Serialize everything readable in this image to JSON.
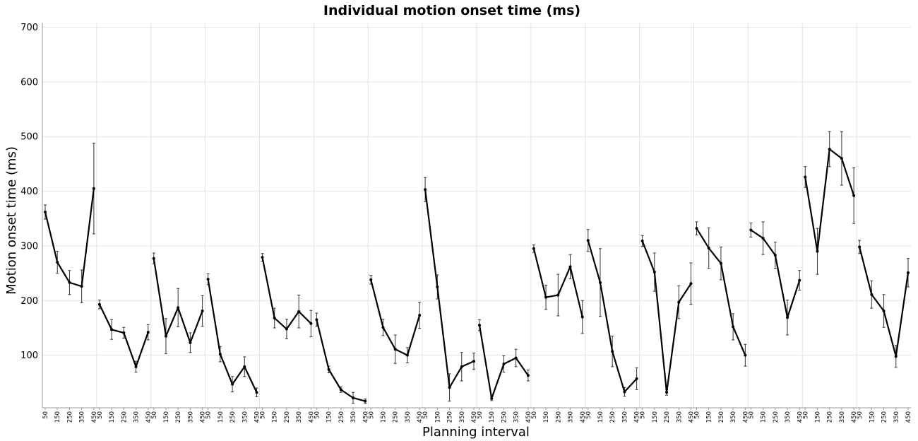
{
  "chart_data": {
    "type": "line",
    "title": "Individual motion onset time (ms)",
    "xlabel": "Planning interval",
    "ylabel": "Motion onset time (ms)",
    "ylim": [
      0,
      700
    ],
    "yticks": [
      100,
      200,
      300,
      400,
      500,
      600,
      700
    ],
    "grid": true,
    "categories": [
      50,
      150,
      250,
      350,
      450
    ],
    "series": [
      {
        "values": [
          362,
          270,
          233,
          226,
          405
        ],
        "err": [
          13,
          20,
          22,
          30,
          83
        ]
      },
      {
        "values": [
          193,
          147,
          141,
          79,
          142
        ],
        "err": [
          8,
          18,
          10,
          10,
          14
        ]
      },
      {
        "values": [
          277,
          135,
          187,
          123,
          181
        ],
        "err": [
          10,
          32,
          35,
          18,
          28
        ]
      },
      {
        "values": [
          239,
          102,
          47,
          79,
          32
        ],
        "err": [
          10,
          14,
          14,
          18,
          8
        ]
      },
      {
        "values": [
          279,
          168,
          148,
          180,
          158
        ],
        "err": [
          7,
          18,
          18,
          30,
          24
        ]
      },
      {
        "values": [
          165,
          74,
          37,
          22,
          16
        ],
        "err": [
          12,
          6,
          5,
          10,
          4
        ]
      },
      {
        "values": [
          238,
          151,
          111,
          100,
          173
        ],
        "err": [
          8,
          15,
          26,
          14,
          24
        ]
      },
      {
        "values": [
          403,
          225,
          41,
          79,
          89
        ],
        "err": [
          22,
          22,
          25,
          26,
          15
        ]
      },
      {
        "values": [
          155,
          21,
          84,
          95,
          63
        ],
        "err": [
          10,
          4,
          15,
          16,
          10
        ]
      },
      {
        "values": [
          295,
          206,
          210,
          262,
          170
        ],
        "err": [
          7,
          22,
          38,
          22,
          30
        ]
      },
      {
        "values": [
          310,
          233,
          107,
          33,
          57
        ],
        "err": [
          20,
          62,
          28,
          8,
          20
        ]
      },
      {
        "values": [
          309,
          252,
          32,
          197,
          231
        ],
        "err": [
          10,
          35,
          5,
          30,
          38
        ]
      },
      {
        "values": [
          332,
          296,
          268,
          152,
          100
        ],
        "err": [
          12,
          37,
          30,
          24,
          20
        ]
      },
      {
        "values": [
          329,
          314,
          283,
          169,
          237
        ],
        "err": [
          13,
          30,
          24,
          32,
          18
        ]
      },
      {
        "values": [
          426,
          290,
          477,
          460,
          392
        ],
        "err": [
          19,
          42,
          32,
          49,
          51
        ]
      },
      {
        "values": [
          298,
          211,
          181,
          98,
          251
        ],
        "err": [
          12,
          25,
          30,
          20,
          26
        ]
      }
    ]
  }
}
